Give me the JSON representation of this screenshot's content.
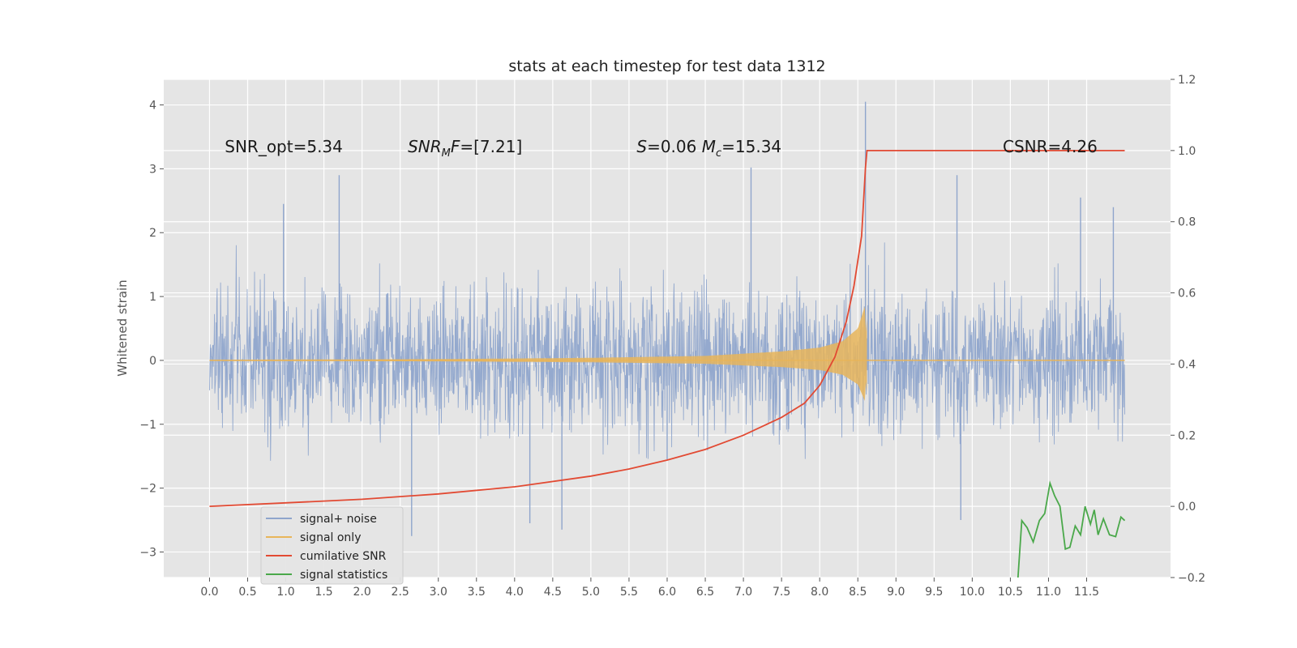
{
  "chart_data": {
    "type": "line",
    "title": "stats at each timestep for test data 1312",
    "ylabel": "Whitened strain",
    "xlabel": "",
    "xlim": [
      -0.6,
      12.6
    ],
    "ylim": [
      -3.4,
      4.4
    ],
    "ylim_right": [
      -0.2,
      1.2
    ],
    "grid": true,
    "background": "#e5e5e5",
    "x_ticks": [
      0.0,
      0.5,
      1.0,
      1.5,
      2.0,
      2.5,
      3.0,
      3.5,
      4.0,
      4.5,
      5.0,
      5.5,
      6.0,
      6.5,
      7.0,
      7.5,
      8.0,
      8.5,
      9.0,
      9.5,
      10.0,
      10.5,
      11.0,
      11.5
    ],
    "x_tick_labels": [
      "0.0",
      "0.5",
      "1.0",
      "1.5",
      "2.0",
      "2.5",
      "3.0",
      "3.5",
      "4.0",
      "4.5",
      "5.0",
      "5.5",
      "6.0",
      "6.5",
      "7.0",
      "7.5",
      "8.0",
      "8.5",
      "9.0",
      "9.5",
      "10.0",
      "10.5",
      "11.0",
      "11.5"
    ],
    "y_ticks": [
      -3,
      -2,
      -1,
      0,
      1,
      2,
      3,
      4
    ],
    "y_tick_labels": [
      "−3",
      "−2",
      "−1",
      "0",
      "1",
      "2",
      "3",
      "4"
    ],
    "y_right_ticks": [
      -0.2,
      0.0,
      0.2,
      0.4,
      0.6,
      0.8,
      1.0,
      1.2
    ],
    "y_right_tick_labels": [
      "−0.2",
      "0.0",
      "0.2",
      "0.4",
      "0.6",
      "0.8",
      "1.0",
      "1.2"
    ],
    "annotations": [
      {
        "text": "SNR_opt=5.34",
        "x": 0.2,
        "y": 3.35
      },
      {
        "text": "SNR_M F=[7.21]",
        "x": 2.6,
        "y": 3.35
      },
      {
        "text": "S=0.06   M_c=15.34",
        "x": 5.6,
        "y": 3.35
      },
      {
        "text": "CSNR=4.26",
        "x": 10.4,
        "y": 3.35
      }
    ],
    "legend": {
      "placement": "lower-left",
      "entries": [
        {
          "label": "signal+ noise",
          "color": "#8fa5cc"
        },
        {
          "label": "signal only",
          "color": "#e8b55a"
        },
        {
          "label": "cumilative SNR",
          "color": "#e24a33"
        },
        {
          "label": "signal statistics",
          "color": "#4aa84a"
        }
      ]
    },
    "series": [
      {
        "name": "signal+ noise",
        "axis": "left",
        "color": "#8fa5cc",
        "x_range": [
          0.0,
          12.0
        ],
        "typical_amplitude": 1.1,
        "peaks": [
          {
            "x": 0.97,
            "y": 2.45
          },
          {
            "x": 1.7,
            "y": 2.9
          },
          {
            "x": 4.2,
            "y": -2.55
          },
          {
            "x": 4.62,
            "y": -2.65
          },
          {
            "x": 7.1,
            "y": 3.02
          },
          {
            "x": 8.6,
            "y": 4.05
          },
          {
            "x": 9.8,
            "y": 2.9
          },
          {
            "x": 9.85,
            "y": -2.5
          },
          {
            "x": 11.42,
            "y": 2.55
          },
          {
            "x": 2.65,
            "y": -2.75
          },
          {
            "x": 11.85,
            "y": 2.4
          },
          {
            "x": 6.0,
            "y": -1.55
          }
        ]
      },
      {
        "name": "signal only",
        "axis": "left",
        "color": "#e8b55a",
        "points": [
          [
            0.0,
            0.01
          ],
          [
            3.0,
            0.02
          ],
          [
            5.0,
            0.04
          ],
          [
            6.5,
            0.07
          ],
          [
            7.5,
            0.14
          ],
          [
            8.0,
            0.2
          ],
          [
            8.3,
            0.3
          ],
          [
            8.5,
            0.5
          ],
          [
            8.6,
            0.88
          ],
          [
            8.62,
            -0.65
          ],
          [
            8.65,
            0.0
          ],
          [
            12.0,
            0.0
          ]
        ]
      },
      {
        "name": "cumilative SNR",
        "axis": "right",
        "color": "#e24a33",
        "points": [
          [
            0.0,
            0.0
          ],
          [
            1.0,
            0.01
          ],
          [
            2.0,
            0.02
          ],
          [
            3.0,
            0.035
          ],
          [
            4.0,
            0.055
          ],
          [
            5.0,
            0.085
          ],
          [
            5.5,
            0.105
          ],
          [
            6.0,
            0.13
          ],
          [
            6.5,
            0.16
          ],
          [
            7.0,
            0.2
          ],
          [
            7.5,
            0.25
          ],
          [
            7.8,
            0.29
          ],
          [
            8.0,
            0.34
          ],
          [
            8.2,
            0.42
          ],
          [
            8.35,
            0.52
          ],
          [
            8.45,
            0.62
          ],
          [
            8.55,
            0.76
          ],
          [
            8.6,
            0.95
          ],
          [
            8.62,
            1.0
          ],
          [
            12.0,
            1.0
          ]
        ]
      },
      {
        "name": "signal statistics",
        "axis": "right",
        "color": "#4aa84a",
        "points": [
          [
            10.6,
            -0.2
          ],
          [
            10.65,
            -0.04
          ],
          [
            10.72,
            -0.06
          ],
          [
            10.8,
            -0.1
          ],
          [
            10.88,
            -0.04
          ],
          [
            10.95,
            -0.02
          ],
          [
            11.02,
            0.065
          ],
          [
            11.08,
            0.03
          ],
          [
            11.15,
            0.0
          ],
          [
            11.22,
            -0.12
          ],
          [
            11.28,
            -0.115
          ],
          [
            11.35,
            -0.055
          ],
          [
            11.42,
            -0.08
          ],
          [
            11.48,
            0.0
          ],
          [
            11.55,
            -0.05
          ],
          [
            11.6,
            -0.01
          ],
          [
            11.65,
            -0.08
          ],
          [
            11.72,
            -0.035
          ],
          [
            11.8,
            -0.08
          ],
          [
            11.88,
            -0.085
          ],
          [
            11.95,
            -0.03
          ],
          [
            12.0,
            -0.04
          ]
        ]
      }
    ]
  }
}
